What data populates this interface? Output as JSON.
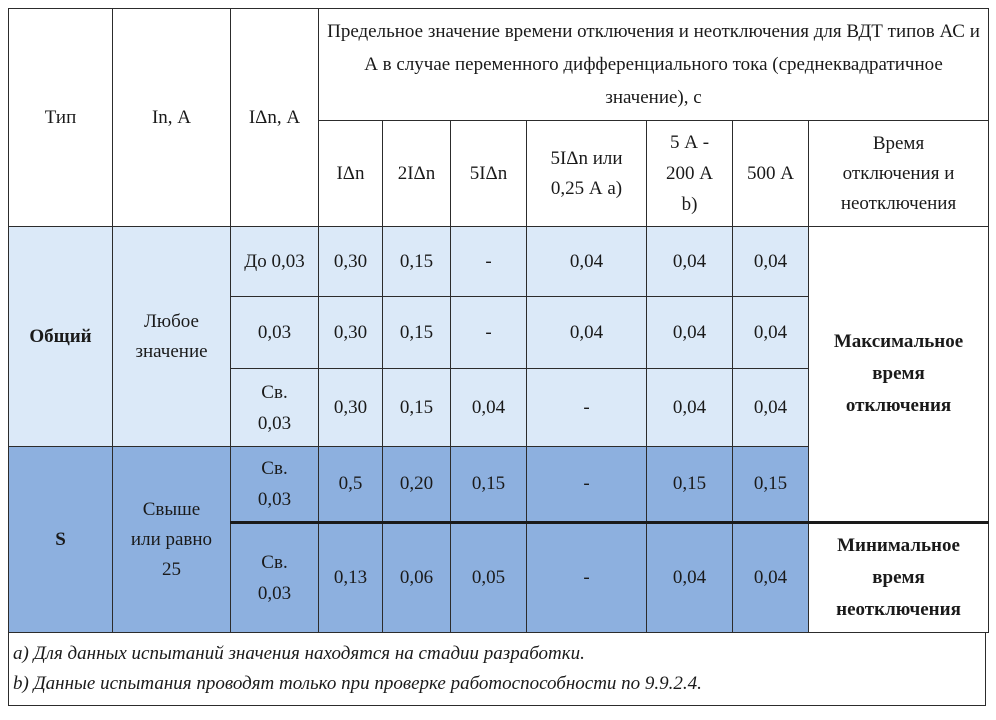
{
  "table": {
    "headers": {
      "type": "Тип",
      "in": "In, А",
      "idn": "IΔn, А",
      "group": "Предельное значение времени отключения и неотключения для ВДТ типов АС и А в случае переменного дифференциального тока (среднеквадратичное значение), с",
      "sub": {
        "c1": "IΔn",
        "c2": "2IΔn",
        "c3": "5IΔn",
        "c4_line1": "5IΔn или",
        "c4_line2": "0,25 А a)",
        "c5_line1": "5 А -",
        "c5_line2": "200 А",
        "c5_line3": "b)",
        "c6": "500 А",
        "c7_line1": "Время",
        "c7_line2": "отключения и",
        "c7_line3": "неотключения"
      }
    },
    "general": {
      "type": "Общий",
      "in_line1": "Любое",
      "in_line2": "значение",
      "rows": [
        {
          "idn": "До 0,03",
          "v1": "0,30",
          "v2": "0,15",
          "v3": "-",
          "v4": "0,04",
          "v5": "0,04",
          "v6": "0,04"
        },
        {
          "idn": "0,03",
          "v1": "0,30",
          "v2": "0,15",
          "v3": "-",
          "v4": "0,04",
          "v5": "0,04",
          "v6": "0,04"
        },
        {
          "idn_line1": "Св.",
          "idn_line2": "0,03",
          "v1": "0,30",
          "v2": "0,15",
          "v3": "0,04",
          "v4": "-",
          "v5": "0,04",
          "v6": "0,04"
        }
      ],
      "note_line1": "Максимальное",
      "note_line2": "время",
      "note_line3": "отключения"
    },
    "s": {
      "type": "S",
      "in_line1": "Свыше",
      "in_line2": "или равно",
      "in_line3": "25",
      "rows": [
        {
          "idn_line1": "Св.",
          "idn_line2": "0,03",
          "v1": "0,5",
          "v2": "0,20",
          "v3": "0,15",
          "v4": "-",
          "v5": "0,15",
          "v6": "0,15"
        },
        {
          "idn_line1": "Св.",
          "idn_line2": "0,03",
          "v1": "0,13",
          "v2": "0,06",
          "v3": "0,05",
          "v4": "-",
          "v5": "0,04",
          "v6": "0,04"
        }
      ],
      "note_line1": "Минимальное",
      "note_line2": "время",
      "note_line3": "неотключения"
    }
  },
  "footnotes": {
    "a": "a) Для данных испытаний значения находятся на стадии разработки.",
    "b": "b) Данные испытания проводят только при проверке работоспособности по 9.9.2.4."
  },
  "colors": {
    "light_band": "#dbe9f8",
    "dark_band": "#8db0df"
  }
}
